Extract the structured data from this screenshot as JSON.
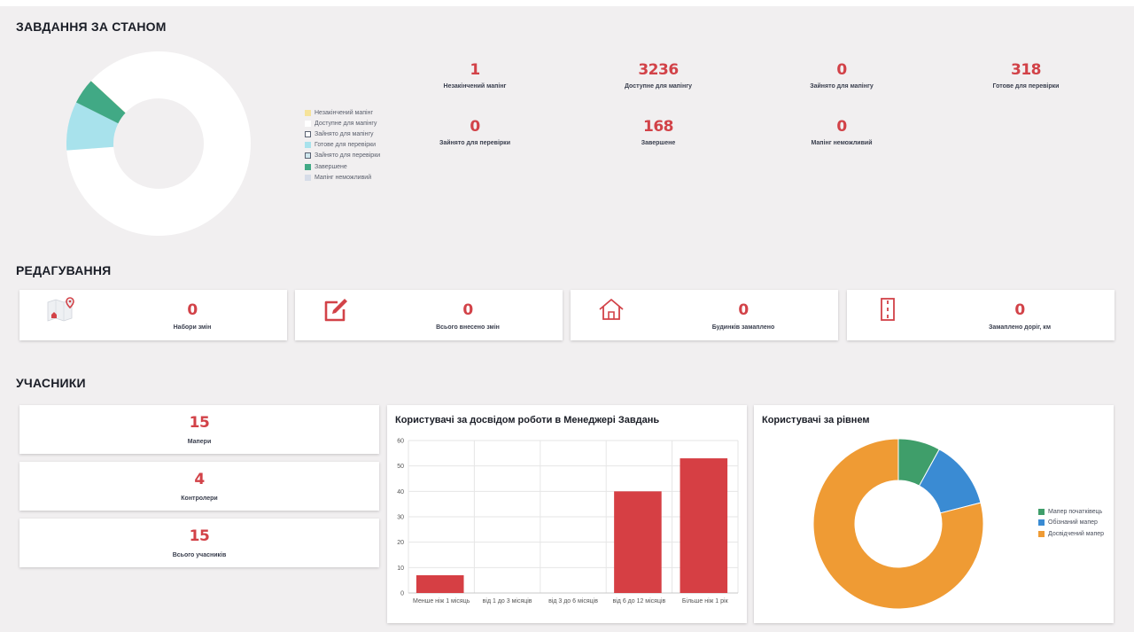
{
  "colors": {
    "accent": "#d24248",
    "unfinished": "#f6e39a",
    "available": "#ffffff",
    "taken_mapping": "#ffffff",
    "ready_review": "#a8e2ec",
    "taken_review": "#cfe7ee",
    "done": "#41a985",
    "impossible": "#d6dce8",
    "beginner": "#3f9e6a",
    "familiar": "#3a8bd3",
    "experienced": "#ef9b34"
  },
  "status": {
    "title": "ЗАВДАННЯ ЗА СТАНОМ",
    "legend": [
      {
        "label": "Незакінчений мапінг",
        "color": "#f6e39a",
        "border": "#f6e39a"
      },
      {
        "label": "Доступне для мапінгу",
        "color": "#ffffff",
        "border": "#ffffff"
      },
      {
        "label": "Зайнято для мапінгу",
        "color": "#ffffff",
        "border": "#5a6272"
      },
      {
        "label": "Готове для перевірки",
        "color": "#a8e2ec",
        "border": "#a8e2ec"
      },
      {
        "label": "Зайнято для перевірки",
        "color": "#cfe7ee",
        "border": "#5a6272"
      },
      {
        "label": "Завершене",
        "color": "#41a985",
        "border": "#41a985"
      },
      {
        "label": "Мапінг неможливий",
        "color": "#d6dce8",
        "border": "#d6dce8"
      }
    ],
    "stats": [
      {
        "value": "1",
        "label": "Незакінчений мапінг"
      },
      {
        "value": "3236",
        "label": "Доступне для мапінгу"
      },
      {
        "value": "0",
        "label": "Зайнято для мапінгу"
      },
      {
        "value": "318",
        "label": "Готове для перевірки"
      },
      {
        "value": "0",
        "label": "Зайнято для перевірки"
      },
      {
        "value": "168",
        "label": "Завершене"
      },
      {
        "value": "0",
        "label": "Мапінг неможливий"
      }
    ],
    "donut": [
      {
        "label": "Незакінчений мапінг",
        "value": 1,
        "color": "#f6e39a"
      },
      {
        "label": "Доступне для мапінгу",
        "value": 3236,
        "color": "#ffffff"
      },
      {
        "label": "Готове для перевірки",
        "value": 318,
        "color": "#a8e2ec"
      },
      {
        "label": "Завершене",
        "value": 168,
        "color": "#41a985"
      }
    ]
  },
  "editing": {
    "title": "РЕДАГУВАННЯ",
    "cards": [
      {
        "icon": "map-pin-icon",
        "value": "0",
        "label": "Набори змін"
      },
      {
        "icon": "edit-icon",
        "value": "0",
        "label": "Всього внесено змін"
      },
      {
        "icon": "house-icon",
        "value": "0",
        "label": "Будинків замаплено"
      },
      {
        "icon": "road-icon",
        "value": "0",
        "label": "Замаплено доріг, км"
      }
    ]
  },
  "participants": {
    "title": "УЧАСНИКИ",
    "cards": [
      {
        "value": "15",
        "label": "Мапери"
      },
      {
        "value": "4",
        "label": "Контролери"
      },
      {
        "value": "15",
        "label": "Всього учасників"
      }
    ]
  },
  "chart_data": [
    {
      "type": "bar",
      "title": "Користувачі за досвідом роботи в Менеджері Завдань",
      "categories": [
        "Менше ніж 1 місяць",
        "від 1 до 3 місяців",
        "від 3 до 6 місяців",
        "від 6 до 12 місяців",
        "Більше ніж 1 рік"
      ],
      "values": [
        7,
        0,
        0,
        40,
        53
      ],
      "ylim": [
        0,
        60
      ],
      "yticks": [
        "0",
        "10",
        "20",
        "30",
        "40",
        "50",
        "60"
      ],
      "grid": true,
      "color": "#d63f44"
    },
    {
      "type": "pie",
      "title": "Користувачі за рівнем",
      "labels": [
        "Мапер початківець",
        "Обізнаний мапер",
        "Досвідчений мапер"
      ],
      "values": [
        8,
        13,
        79
      ],
      "colors": [
        "#3f9e6a",
        "#3a8bd3",
        "#ef9b34"
      ],
      "legend": "right"
    }
  ]
}
